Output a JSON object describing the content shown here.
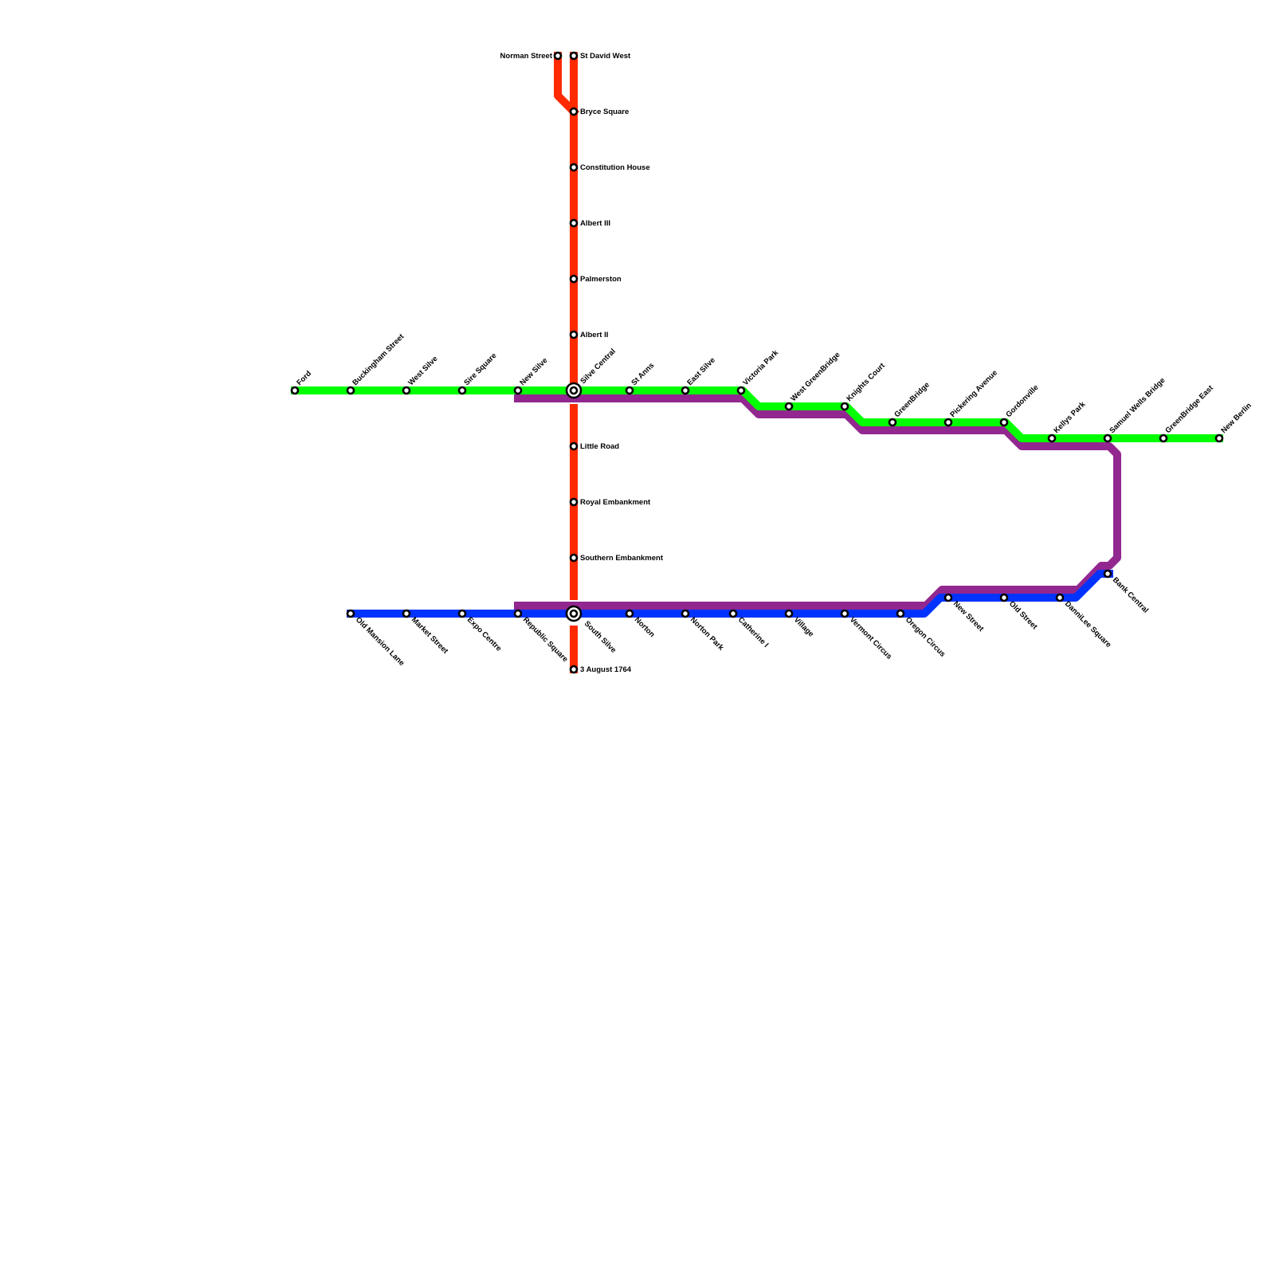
{
  "colors": {
    "red": "#ff2a00",
    "green": "#00ff00",
    "purple": "#92278f",
    "blue": "#0033ff"
  },
  "stations": {
    "norman_street": "Norman Street",
    "st_david_west": "St David West",
    "bryce_square": "Bryce Square",
    "constitution_house": "Constitution House",
    "albert_iii": "Albert III",
    "palmerston": "Palmerston",
    "albert_ii": "Albert II",
    "silve_central": "Silve Central",
    "little_road": "Little Road",
    "royal_embankment": "Royal Embankment",
    "southern_embankment": "Southern Embankment",
    "south_silve": "South Silve",
    "august_1764": "3 August 1764",
    "ford": "Ford",
    "buckingham_street": "Buckingham Street",
    "west_silve": "West Silve",
    "sire_square": "Sire Square",
    "new_silve": "New Silve",
    "st_anns": "St Anns",
    "east_silve": "East Silve",
    "victoria_park": "Victoria Park",
    "west_greenbridge": "West GreenBridge",
    "knights_court": "Knights Court",
    "greenbridge": "GreenBridge",
    "pickering_avenue": "Pickering Avenue",
    "gordonville": "Gordonville",
    "kellys_park": "Kellys Park",
    "samuel_wells_bridge": "Samuel Wells Bridge",
    "greenbridge_east": "GreenBridge East",
    "new_berlin": "New Berlin",
    "old_mansion_lane": "Old Mansion Lane",
    "market_street": "Market Street",
    "expo_centre": "Expo Centre",
    "republic_square": "Republic Square",
    "norton": "Norton",
    "norton_park": "Norton Park",
    "catherine_i": "Catherine I",
    "village": "Village",
    "vermont_circus": "Vermont Circus",
    "oregon_circus": "Oregon Circus",
    "new_street": "New Street",
    "old_street": "Old Street",
    "dannilee_square": "DanniLee Square",
    "bank_central": "Bank Central"
  }
}
